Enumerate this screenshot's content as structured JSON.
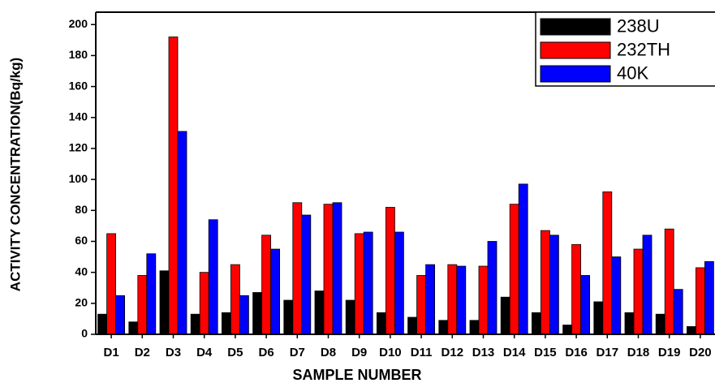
{
  "chart_data": {
    "type": "bar",
    "x_label": "SAMPLE NUMBER",
    "y_label": "ACTIVITY CONCENTRATION(Bq/kg)",
    "categories": [
      "D1",
      "D2",
      "D3",
      "D4",
      "D5",
      "D6",
      "D7",
      "D8",
      "D9",
      "D10",
      "D11",
      "D12",
      "D13",
      "D14",
      "D15",
      "D16",
      "D17",
      "D18",
      "D19",
      "D20"
    ],
    "series": [
      {
        "name": "238U",
        "color": "#000000",
        "values": [
          13,
          8,
          41,
          13,
          14,
          27,
          22,
          28,
          22,
          14,
          11,
          9,
          9,
          24,
          14,
          6,
          21,
          14,
          13,
          5
        ]
      },
      {
        "name": "232TH",
        "color": "#ff0000",
        "values": [
          65,
          38,
          192,
          40,
          45,
          64,
          85,
          84,
          65,
          82,
          38,
          45,
          44,
          84,
          67,
          58,
          92,
          55,
          68,
          43
        ]
      },
      {
        "name": "40K",
        "color": "#0000ff",
        "values": [
          25,
          52,
          131,
          74,
          25,
          55,
          77,
          85,
          66,
          66,
          45,
          44,
          60,
          97,
          64,
          38,
          50,
          64,
          29,
          47
        ]
      }
    ],
    "ylim": [
      0,
      208
    ],
    "yticks": [
      0,
      20,
      40,
      60,
      80,
      100,
      120,
      140,
      160,
      180,
      200
    ],
    "legend": "top-right"
  }
}
